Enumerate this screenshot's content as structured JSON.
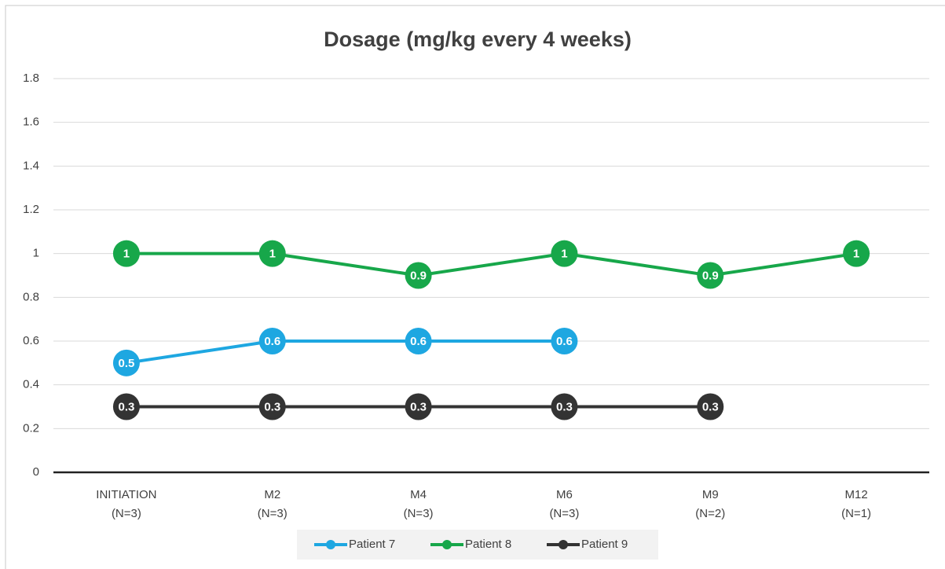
{
  "chart_data": {
    "type": "line",
    "title": "Dosage (mg/kg every 4 weeks)",
    "categories": [
      "INITIATION (N=3)",
      "M2 (N=3)",
      "M4 (N=3)",
      "M6 (N=3)",
      "M9 (N=2)",
      "M12 (N=1)"
    ],
    "series": [
      {
        "name": "Patient 7",
        "color": "#1ea7e1",
        "values": [
          0.5,
          0.6,
          0.6,
          0.6,
          null,
          null
        ]
      },
      {
        "name": "Patient 8",
        "color": "#17a74a",
        "values": [
          1,
          1,
          0.9,
          1,
          0.9,
          1
        ]
      },
      {
        "name": "Patient 9",
        "color": "#333333",
        "values": [
          0.3,
          0.3,
          0.3,
          0.3,
          0.3,
          null
        ]
      }
    ],
    "ylim": [
      0,
      1.8
    ],
    "yticks": [
      0,
      0.2,
      0.4,
      0.6,
      0.8,
      1,
      1.2,
      1.4,
      1.6,
      1.8
    ],
    "grid": true,
    "legend": "bottom"
  }
}
